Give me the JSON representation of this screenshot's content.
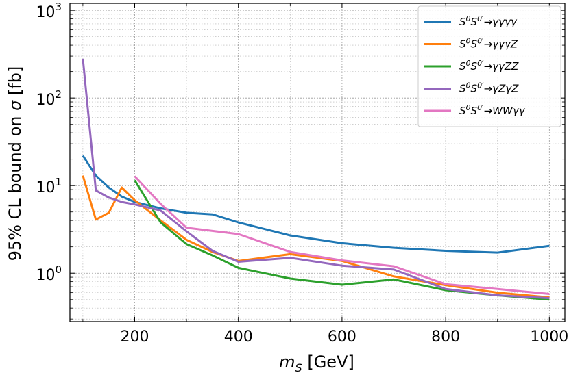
{
  "chart_data": {
    "type": "line",
    "title": "",
    "xlabel": "m_S [GeV]",
    "xlabel_main": "m",
    "xlabel_sub": "S",
    "xlabel_unit": " [GeV]",
    "ylabel": "95% CL bound on σ [fb]",
    "ylabel_prefix": "95% CL bound on ",
    "ylabel_symbol": "σ",
    "ylabel_unit": " [fb]",
    "xlim": [
      75,
      1030
    ],
    "ylim": [
      0.28,
      1200
    ],
    "yscale": "log",
    "grid": "both (major and minor), dotted",
    "legend_position": "top-right",
    "x_ticks": [
      200,
      400,
      600,
      800,
      1000
    ],
    "x_tick_labels": [
      "200",
      "400",
      "600",
      "800",
      "1000"
    ],
    "y_ticks": [
      1,
      10,
      100,
      1000
    ],
    "y_tick_base": "10",
    "y_tick_exponents": [
      "0",
      "1",
      "2",
      "3"
    ],
    "series": [
      {
        "name": "S⁰S⁰′→γγγγ",
        "legend_prefix": "S",
        "legend_arrow": "→",
        "legend_final": "γγγγ",
        "color": "#1f77b4",
        "x": [
          100,
          125,
          150,
          175,
          200,
          250,
          300,
          350,
          400,
          500,
          600,
          700,
          800,
          900,
          1000
        ],
        "y": [
          22,
          13,
          9.5,
          7.5,
          6.5,
          5.5,
          4.9,
          4.7,
          3.8,
          2.7,
          2.2,
          1.95,
          1.8,
          1.72,
          2.05
        ]
      },
      {
        "name": "S⁰S⁰′→γγγZ",
        "legend_prefix": "S",
        "legend_arrow": "→",
        "legend_final": "γγγZ",
        "color": "#ff7f0e",
        "x": [
          100,
          125,
          150,
          175,
          200,
          250,
          300,
          350,
          400,
          500,
          600,
          700,
          800,
          900,
          1000
        ],
        "y": [
          13,
          4.1,
          4.9,
          9.5,
          6.8,
          4.0,
          2.4,
          1.75,
          1.38,
          1.65,
          1.38,
          0.92,
          0.73,
          0.6,
          0.53
        ]
      },
      {
        "name": "S⁰S⁰′→γγZZ",
        "legend_prefix": "S",
        "legend_arrow": "→",
        "legend_final": "γγZZ",
        "color": "#2ca02c",
        "x": [
          200,
          250,
          300,
          350,
          400,
          500,
          600,
          700,
          800,
          900,
          1000
        ],
        "y": [
          11.5,
          3.8,
          2.15,
          1.6,
          1.15,
          0.87,
          0.74,
          0.85,
          0.64,
          0.56,
          0.5
        ]
      },
      {
        "name": "S⁰S⁰′→γZγZ",
        "legend_prefix": "S",
        "legend_arrow": "→",
        "legend_final": "γZγZ",
        "color": "#9467bd",
        "x": [
          100,
          125,
          150,
          175,
          200,
          250,
          300,
          350,
          400,
          500,
          600,
          700,
          800,
          900,
          1000
        ],
        "y": [
          280,
          8.8,
          7.3,
          6.5,
          6.1,
          5.2,
          3.0,
          1.8,
          1.35,
          1.5,
          1.22,
          1.1,
          0.66,
          0.56,
          0.52
        ]
      },
      {
        "name": "S⁰S⁰′→WWγγ",
        "legend_prefix": "S",
        "legend_arrow": "→",
        "legend_final": "WWγγ",
        "color": "#e377c2",
        "x": [
          200,
          250,
          300,
          400,
          500,
          600,
          700,
          800,
          900,
          1000
        ],
        "y": [
          12.8,
          6.2,
          3.3,
          2.8,
          1.75,
          1.4,
          1.2,
          0.75,
          0.66,
          0.58
        ]
      }
    ]
  }
}
